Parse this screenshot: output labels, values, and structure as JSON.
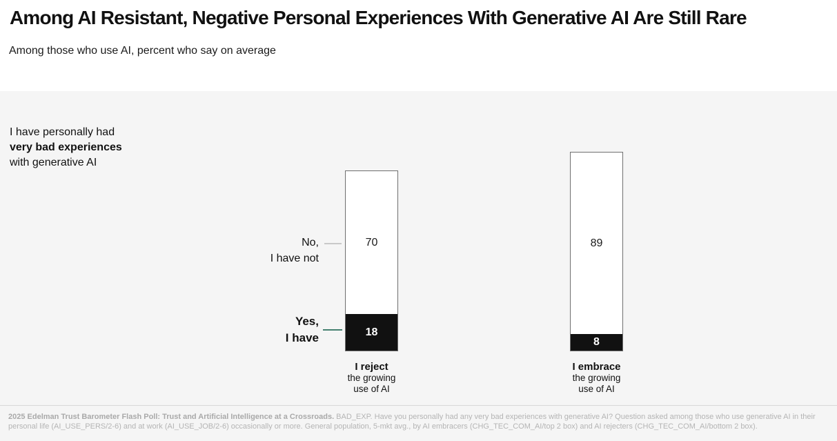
{
  "header": {
    "title": "Among AI Resistant, Negative Personal Experiences With Generative AI Are Still Rare",
    "subtitle": "Among those who use AI, percent who say on average"
  },
  "annotation": {
    "line1": "I have personally had",
    "line2": "very bad experiences",
    "line3": "with generative AI"
  },
  "row_labels": {
    "no_line1": "No,",
    "no_line2": "I have not",
    "yes_line1": "Yes,",
    "yes_line2": "I have"
  },
  "chart_data": {
    "type": "bar",
    "stacked": true,
    "unit": "percent",
    "title": "Among AI Resistant, Negative Personal Experiences With Generative AI Are Still Rare",
    "subtitle": "Among those who use AI, percent who say on average",
    "measure": "I have personally had very bad experiences with generative AI",
    "categories": [
      "I reject the growing use of AI",
      "I embrace the growing use of AI"
    ],
    "series": [
      {
        "name": "No, I have not",
        "color": "#ffffff",
        "values": [
          70,
          89
        ]
      },
      {
        "name": "Yes, I have",
        "color": "#111111",
        "values": [
          18,
          8
        ]
      }
    ],
    "ylim": [
      0,
      100
    ],
    "grid": false,
    "legend_position": "left-of-bars",
    "pixels_per_percent": 2.95,
    "categories_display": [
      {
        "bold": "I reject",
        "line2": "the growing",
        "line3": "use of AI"
      },
      {
        "bold": "I embrace",
        "line2": "the growing",
        "line3": "use of AI"
      }
    ]
  },
  "footer": {
    "source_bold": "2025 Edelman Trust Barometer Flash Poll: Trust and Artificial Intelligence at a Crossroads.",
    "source_rest": "  BAD_EXP. Have you personally had any very bad experiences with generative AI? Question asked among those who use generative AI in their personal life (AI_USE_PERS/2-6) and at work (AI_USE_JOB/2-6) occasionally or more. General population, 5-mkt avg., by AI embracers (CHG_TEC_COM_AI/top 2 box) and AI rejecters (CHG_TEC_COM_AI/bottom 2 box)."
  },
  "colors": {
    "chart_background": "#f5f5f5",
    "bar_no_fill": "#ffffff",
    "bar_yes_fill": "#111111",
    "bar_border": "#6e6e6e",
    "no_connector": "#c9c9c9",
    "yes_connector": "#44806f",
    "footer_text": "#b4b4b4",
    "footer_divider": "#d8d8d8"
  }
}
